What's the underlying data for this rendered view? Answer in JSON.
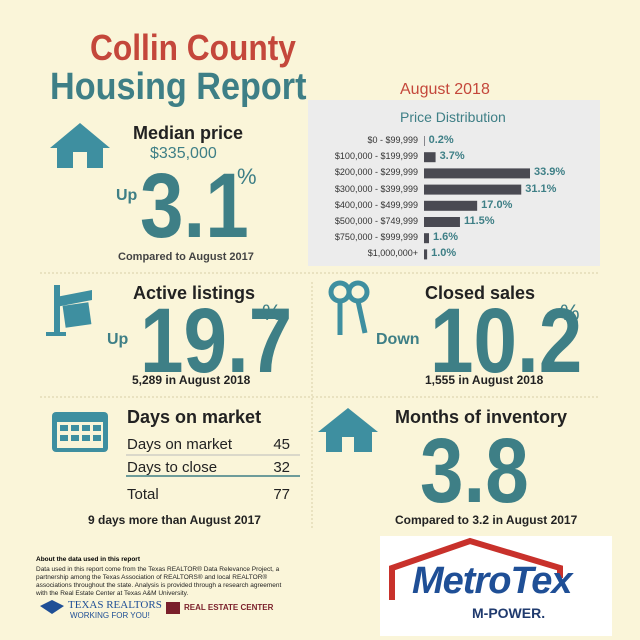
{
  "header": {
    "title_line1": "Collin County",
    "title_line2": "Housing Report",
    "date": "August 2018"
  },
  "price_distribution": {
    "type": "bar",
    "title": "Price Distribution",
    "color": "#4a4a52",
    "categories": [
      "$0 - $99,999",
      "$100,000 - $199,999",
      "$200,000 - $299,999",
      "$300,000 - $399,999",
      "$400,000 - $499,999",
      "$500,000 - $749,999",
      "$750,000 - $999,999",
      "$1,000,000+"
    ],
    "values": [
      0.2,
      3.7,
      33.9,
      31.1,
      17.0,
      11.5,
      1.6,
      1.0
    ],
    "value_labels": [
      "0.2%",
      "3.7%",
      "33.9%",
      "31.1%",
      "17.0%",
      "11.5%",
      "1.6%",
      "1.0%"
    ]
  },
  "median_price": {
    "label": "Median price",
    "price": "$335,000",
    "direction": "Up",
    "change": "3.1",
    "unit": "%",
    "comparison": "Compared to August 2017"
  },
  "active_listings": {
    "label": "Active listings",
    "direction": "Up",
    "change": "19.7",
    "unit": "%",
    "note": "5,289 in August 2018"
  },
  "closed_sales": {
    "label": "Closed sales",
    "direction": "Down",
    "change": "10.2",
    "unit": "%",
    "note": "1,555 in August 2018"
  },
  "days_on_market": {
    "label": "Days on market",
    "rows": [
      [
        "Days on market",
        "45"
      ],
      [
        "Days to close",
        "32"
      ],
      [
        "Total",
        "77"
      ]
    ],
    "note": "9 days more than August 2017"
  },
  "months_of_inventory": {
    "label": "Months of inventory",
    "value": "3.8",
    "note": "Compared to 3.2 in August 2017"
  },
  "footer": {
    "heading": "About the data used in this report",
    "text": "Data used in this report come from the Texas REALTOR® Data Relevance Project, a partnership among the Texas Association of REALTORS® and local REALTOR® associations throughout the state. Analysis is provided through a research agreement with the Real Estate Center at Texas A&M University.",
    "logo1": "TEXAS REALTORS",
    "logo1_tag": "WORKING FOR YOU!",
    "logo2": "REAL ESTATE CENTER",
    "logo3": "MetroTex",
    "logo3_tag": "M-POWER."
  }
}
